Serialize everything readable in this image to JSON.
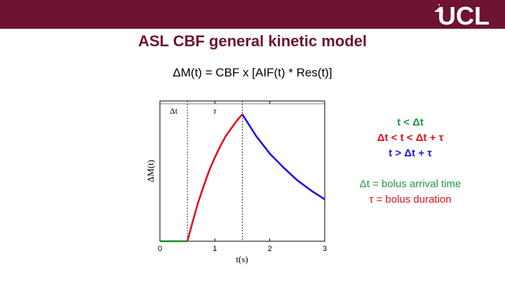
{
  "banner": {
    "color": "#6e1330",
    "logo_text": "UCL"
  },
  "slide": {
    "title": "ASL CBF general kinetic model",
    "equation": "ΔM(t) = CBF x [AIF(t) * Res(t)]"
  },
  "legend": {
    "items": [
      {
        "text": "t < Δt",
        "color": "#1e9a46"
      },
      {
        "text": "Δt < t < Δt + τ",
        "color": "#e4101a"
      },
      {
        "text": "t > Δt + τ",
        "color": "#1a17e0"
      }
    ],
    "definitions": [
      {
        "text": "Δt = bolus arrival time",
        "color": "#1e9a46"
      },
      {
        "text": "τ = bolus duration",
        "color": "#e4101a"
      }
    ]
  },
  "chart_data": {
    "type": "line",
    "xlabel": "t(s)",
    "ylabel": "ΔM(t)",
    "xlim": [
      0,
      3
    ],
    "ylim": [
      0,
      1
    ],
    "x_ticks": [
      "0",
      "1",
      "2",
      "3"
    ],
    "grid": false,
    "markers": [
      {
        "label": "Δt",
        "x": 0.5
      },
      {
        "label": "τ",
        "x": 1.5
      }
    ],
    "series": [
      {
        "color": "#1a8a2a",
        "x": [
          0,
          0.5
        ],
        "y": [
          0,
          0
        ]
      },
      {
        "color": "#e4101a",
        "x": [
          0.5,
          0.6,
          0.7,
          0.8,
          0.9,
          1.0,
          1.1,
          1.2,
          1.3,
          1.4,
          1.5
        ],
        "y": [
          0,
          0.16,
          0.31,
          0.44,
          0.56,
          0.66,
          0.75,
          0.83,
          0.89,
          0.95,
          1.0
        ]
      },
      {
        "color": "#1a17e0",
        "x": [
          1.5,
          1.75,
          2.0,
          2.25,
          2.5,
          2.75,
          3.0
        ],
        "y": [
          1.0,
          0.83,
          0.69,
          0.58,
          0.48,
          0.4,
          0.33
        ]
      }
    ]
  }
}
